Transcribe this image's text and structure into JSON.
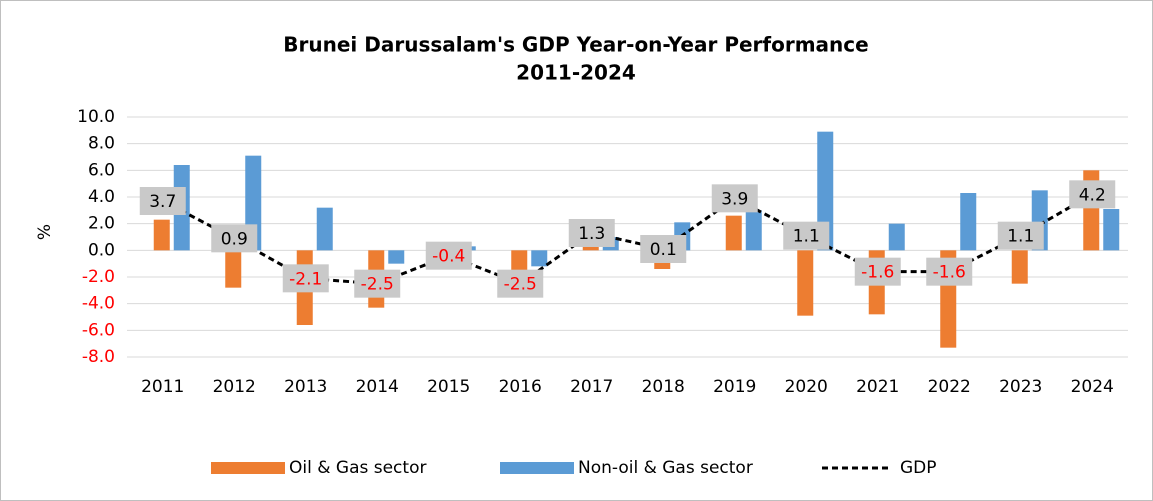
{
  "chart_data": {
    "type": "bar-line",
    "title": "Brunei Darussalam's GDP Year-on-Year Performance",
    "subtitle": "2011-2024",
    "y_label": "%",
    "categories": [
      "2011",
      "2012",
      "2013",
      "2014",
      "2015",
      "2016",
      "2017",
      "2018",
      "2019",
      "2020",
      "2021",
      "2022",
      "2023",
      "2024"
    ],
    "series": [
      {
        "name": "Oil & Gas sector",
        "kind": "bar",
        "color": "#ed7d31",
        "values": [
          2.3,
          -2.8,
          -5.6,
          -4.3,
          -0.8,
          -2.6,
          0.5,
          -1.4,
          2.6,
          -4.9,
          -4.8,
          -7.3,
          -2.5,
          6.0
        ]
      },
      {
        "name": "Non-oil & Gas sector",
        "kind": "bar",
        "color": "#5b9bd5",
        "values": [
          6.4,
          7.1,
          3.2,
          -1.0,
          0.3,
          -1.2,
          1.0,
          2.1,
          3.0,
          8.9,
          2.0,
          4.3,
          4.5,
          3.1
        ]
      },
      {
        "name": "GDP",
        "kind": "line",
        "color": "#000000",
        "values": [
          3.7,
          0.9,
          -2.1,
          -2.5,
          -0.4,
          -2.5,
          1.3,
          0.1,
          3.9,
          1.1,
          -1.6,
          -1.6,
          1.1,
          4.2
        ]
      }
    ],
    "negative_color": "#ff0000",
    "ylim": [
      -8,
      10
    ],
    "yticks": [
      {
        "value": -8,
        "label": "-8.0"
      },
      {
        "value": -6,
        "label": "-6.0"
      },
      {
        "value": -4,
        "label": "-4.0"
      },
      {
        "value": -2,
        "label": "-2.0"
      },
      {
        "value": 0,
        "label": "0.0"
      },
      {
        "value": 2,
        "label": "2.0"
      },
      {
        "value": 4,
        "label": "4.0"
      },
      {
        "value": 6,
        "label": "6.0"
      },
      {
        "value": 8,
        "label": "8.0"
      },
      {
        "value": 10,
        "label": "10.0"
      }
    ],
    "grid": true,
    "legend": "bottom"
  }
}
